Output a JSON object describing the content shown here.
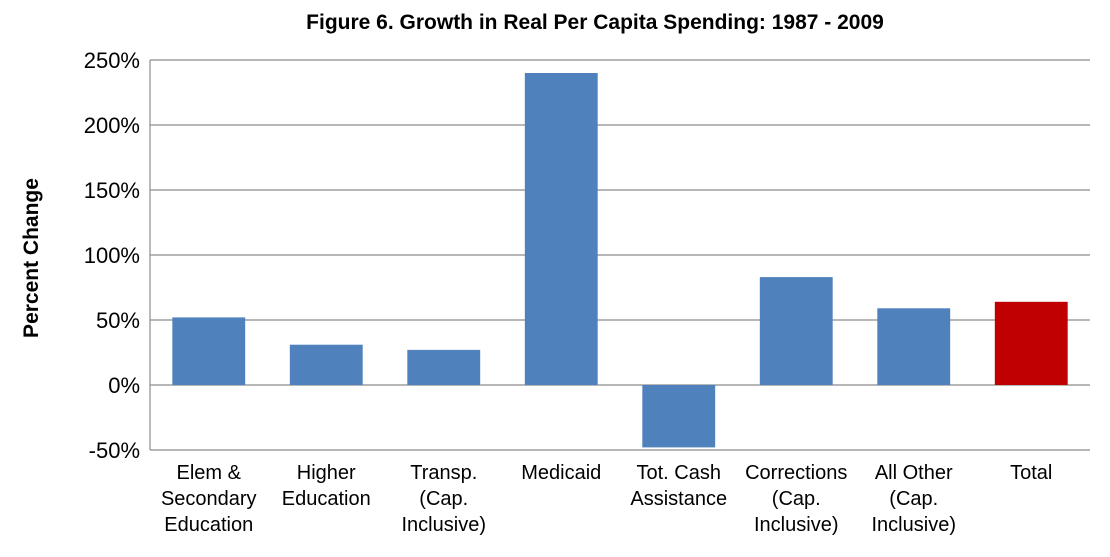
{
  "chart_data": {
    "type": "bar",
    "title": "Figure 6. Growth in Real Per Capita Spending: 1987 - 2009",
    "ylabel": "Percent Change",
    "xlabel": "",
    "ylim": [
      -50,
      250
    ],
    "yticks": [
      -50,
      0,
      50,
      100,
      150,
      200,
      250
    ],
    "ytick_labels": [
      "-50%",
      "0%",
      "50%",
      "100%",
      "150%",
      "200%",
      "250%"
    ],
    "grid": true,
    "categories": [
      [
        "Elem &",
        "Secondary",
        "Education"
      ],
      [
        "Higher",
        "Education"
      ],
      [
        "Transp.",
        "(Cap.",
        "Inclusive)"
      ],
      [
        "Medicaid"
      ],
      [
        "Tot. Cash",
        "Assistance"
      ],
      [
        "Corrections",
        "(Cap.",
        "Inclusive)"
      ],
      [
        "All Other",
        "(Cap.",
        "Inclusive)"
      ],
      [
        "Total"
      ]
    ],
    "values": [
      52,
      31,
      27,
      240,
      -48,
      83,
      59,
      64
    ],
    "colors": [
      "#4f81bd",
      "#4f81bd",
      "#4f81bd",
      "#4f81bd",
      "#4f81bd",
      "#4f81bd",
      "#4f81bd",
      "#c00000"
    ]
  }
}
